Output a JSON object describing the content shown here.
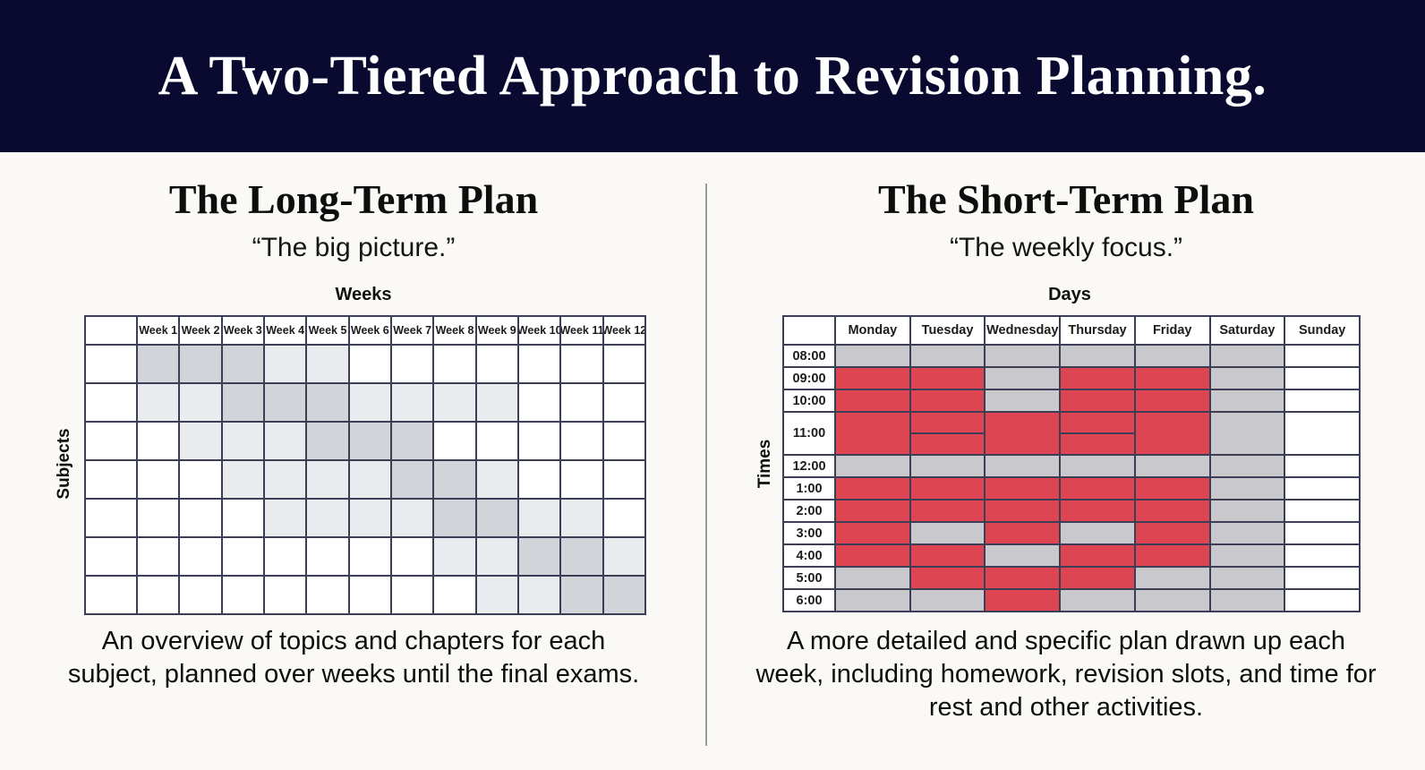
{
  "banner": {
    "title": "A Two-Tiered Approach to Revision Planning."
  },
  "colors": {
    "banner_bg": "#0a0a30",
    "page_bg": "#faf9f6",
    "grid_line": "#3b3e55",
    "divider": "#9b9b9b"
  },
  "left_panel": {
    "heading": "The Long-Term Plan",
    "subtitle": "“The big picture.”",
    "top_axis_label": "Weeks",
    "left_axis_label": "Subjects",
    "column_headers": [
      "Week 1",
      "Week 2",
      "Week 3",
      "Week 4",
      "Week 5",
      "Week 6",
      "Week 7",
      "Week 8",
      "Week 9",
      "Week 10",
      "Week 11",
      "Week 12"
    ],
    "row_count": 7,
    "shading_levels": {
      "0": "#ffffff",
      "1": "#eaebee",
      "2": "#d2d4d9"
    },
    "shading_matrix": [
      [
        2,
        2,
        2,
        1,
        1,
        0,
        0,
        0,
        0,
        0,
        0,
        0
      ],
      [
        1,
        1,
        2,
        2,
        2,
        1,
        1,
        1,
        1,
        0,
        0,
        0
      ],
      [
        0,
        1,
        1,
        1,
        2,
        2,
        2,
        0,
        0,
        0,
        0,
        0
      ],
      [
        0,
        0,
        1,
        1,
        1,
        1,
        2,
        2,
        1,
        0,
        0,
        0
      ],
      [
        0,
        0,
        0,
        1,
        1,
        1,
        1,
        2,
        2,
        1,
        1,
        0
      ],
      [
        0,
        0,
        0,
        0,
        0,
        0,
        0,
        1,
        1,
        2,
        2,
        1
      ],
      [
        0,
        0,
        0,
        0,
        0,
        0,
        0,
        0,
        1,
        1,
        2,
        2
      ]
    ],
    "description": "An overview of topics and chapters for each subject, planned over weeks until the final exams."
  },
  "right_panel": {
    "heading": "The Short-Term Plan",
    "subtitle": "“The weekly focus.”",
    "top_axis_label": "Days",
    "left_axis_label": "Times",
    "column_headers": [
      "Monday",
      "Tuesday",
      "Wednesday",
      "Thursday",
      "Friday",
      "Saturday",
      "Sunday"
    ],
    "time_labels": [
      "08:00",
      "09:00",
      "10:00",
      "11:00",
      "12:00",
      "1:00",
      "2:00",
      "3:00",
      "4:00",
      "5:00",
      "6:00"
    ],
    "cell_colors": {
      "r": "#dc4551",
      "g": "#c9c9cd",
      "w": "#ffffff"
    },
    "cell_matrix": [
      [
        "g",
        "g",
        "g",
        "g",
        "g",
        "g",
        "w"
      ],
      [
        "r",
        "r",
        "g",
        "r",
        "r",
        "g",
        "w"
      ],
      [
        "r",
        "r",
        "g",
        "r",
        "r",
        "g",
        "w"
      ],
      [
        "r",
        "r",
        "r",
        "r",
        "r",
        "g",
        "w"
      ],
      [
        "g",
        "g",
        "g",
        "g",
        "g",
        "g",
        "w"
      ],
      [
        "r",
        "r",
        "r",
        "r",
        "r",
        "g",
        "w"
      ],
      [
        "r",
        "r",
        "r",
        "r",
        "r",
        "g",
        "w"
      ],
      [
        "r",
        "g",
        "r",
        "g",
        "r",
        "g",
        "w"
      ],
      [
        "r",
        "r",
        "g",
        "r",
        "r",
        "g",
        "w"
      ],
      [
        "g",
        "r",
        "r",
        "r",
        "g",
        "g",
        "w"
      ],
      [
        "g",
        "g",
        "r",
        "g",
        "g",
        "g",
        "w"
      ]
    ],
    "tall_row_index": 3,
    "split_cells": [
      [
        3,
        1
      ],
      [
        3,
        3
      ]
    ],
    "description": "A more detailed and specific plan drawn up each week, including homework, revision slots, and time for rest and other activities."
  }
}
